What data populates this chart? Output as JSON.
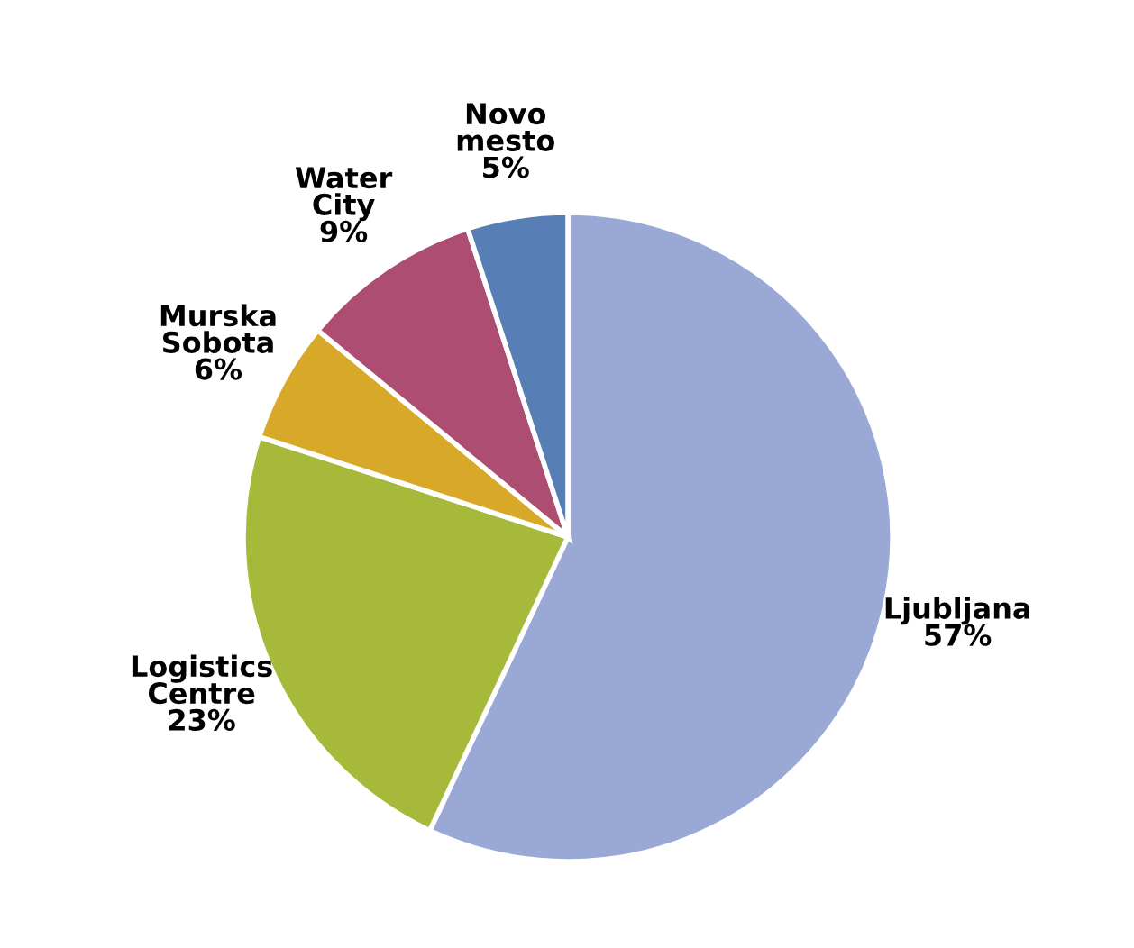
{
  "chart_data": {
    "type": "pie",
    "categories": [
      "Ljubljana",
      "Logistics Centre",
      "Murska Sobota",
      "Water City",
      "Novo mesto"
    ],
    "values": [
      57,
      23,
      6,
      9,
      5
    ],
    "value_labels": [
      "57%",
      "23%",
      "6%",
      "9%",
      "5%"
    ],
    "colors": [
      "#99a8d4",
      "#a6b93a",
      "#d8a928",
      "#ad4d72",
      "#577fb5"
    ],
    "legend": false
  }
}
